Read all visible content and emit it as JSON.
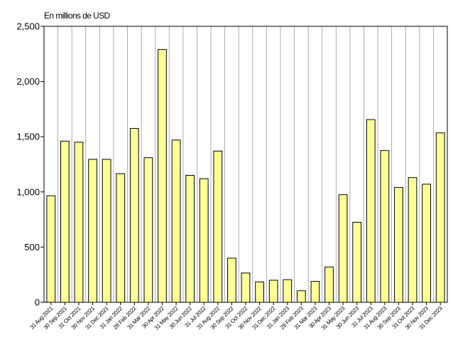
{
  "chart_data": {
    "type": "bar",
    "unit_label": "En millions de USD",
    "categories": [
      "31 Aug 2021",
      "30 Sep 2021",
      "31 Oct 2021",
      "30 Nov 2021",
      "31 Dec 2021",
      "31 Jan 2022",
      "28 Feb 2022",
      "31 Mar 2022",
      "30 Apr 2022",
      "31 May 2022",
      "30 Jun 2022",
      "31 Jul 2022",
      "31 Aug 2022",
      "30 Sep 2022",
      "31 Oct 2022",
      "30 Nov 2022",
      "31 Dec 2022",
      "31 Jan 2023",
      "28 Feb 2023",
      "31 Mar 2023",
      "30 Apr 2023",
      "31 May 2023",
      "30 Jun 2023",
      "31 Jul 2023",
      "31 Aug 2023",
      "30 Sep 2023",
      "31 Oct 2023",
      "30 Nov 2023",
      "31 Dec 2023"
    ],
    "values": [
      965,
      1460,
      1450,
      1295,
      1295,
      1165,
      1575,
      1310,
      2290,
      1470,
      1150,
      1120,
      1370,
      400,
      265,
      185,
      200,
      205,
      105,
      190,
      320,
      975,
      725,
      1655,
      1375,
      1040,
      1130,
      1070,
      1535
    ],
    "ylim": [
      0,
      2500
    ],
    "yticks": [
      0,
      500,
      1000,
      1500,
      2000,
      2500
    ],
    "ytick_labels": [
      "0",
      "500",
      "1,000",
      "1,500",
      "2,000",
      "2,500"
    ],
    "grid": "vertical",
    "colors": {
      "bar_fill": "#ffff99",
      "bar_stroke": "#000000",
      "grid": "#9a9a9a",
      "axis": "#000000"
    }
  }
}
